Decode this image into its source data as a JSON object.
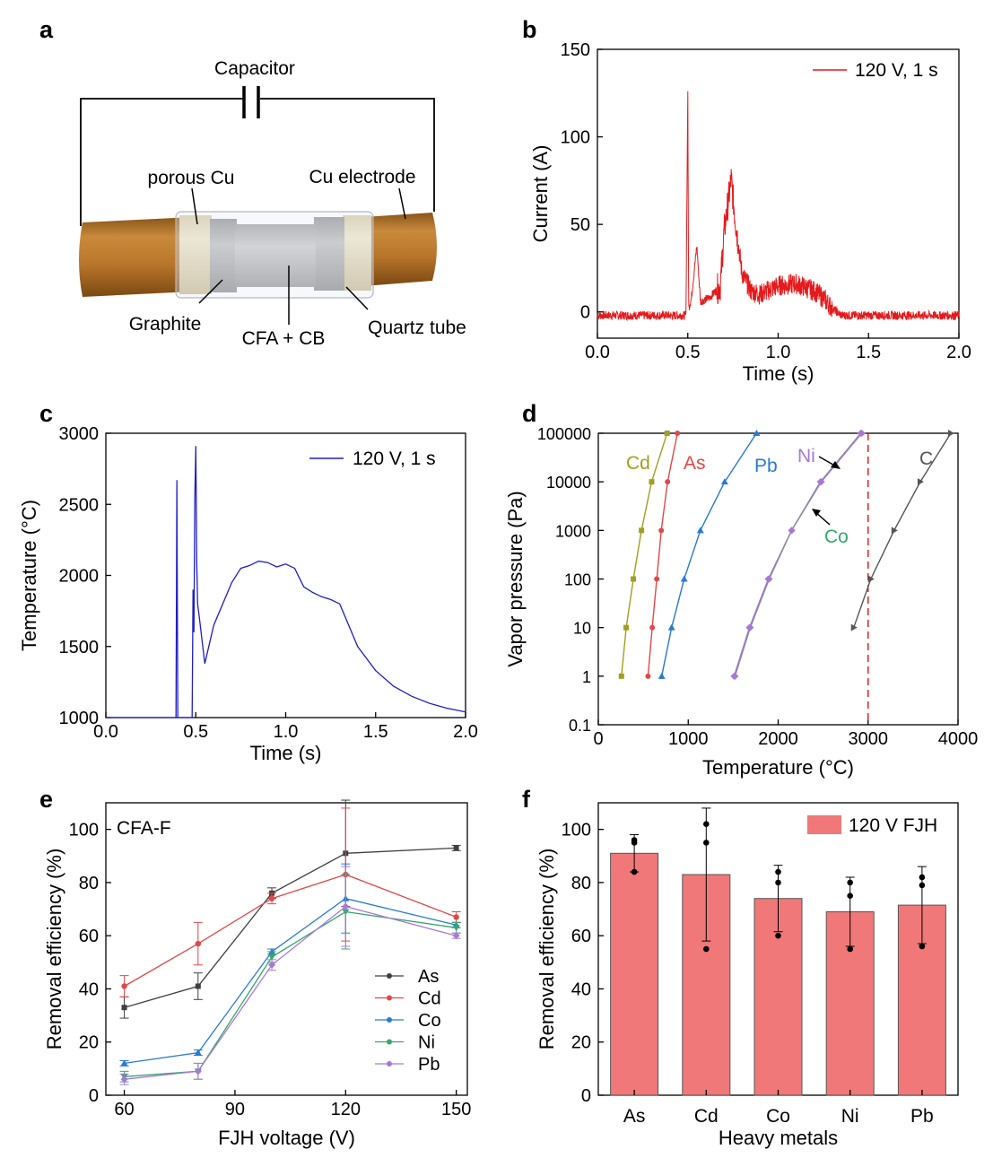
{
  "panel_labels": {
    "a": "a",
    "b": "b",
    "c": "c",
    "d": "d",
    "e": "e",
    "f": "f"
  },
  "schematic": {
    "capacitor": "Capacitor",
    "porous_cu": "porous Cu",
    "cu_electrode": "Cu electrode",
    "graphite": "Graphite",
    "cfa_cb": "CFA + CB",
    "quartz_tube": "Quartz tube"
  },
  "colors": {
    "current": "#e41a1c",
    "temperature": "#1f1fc9",
    "electrode": "#b8752a",
    "As": "#404040",
    "Cd": "#e04848",
    "Co": "#2a7ad0",
    "Ni": "#35a86a",
    "Pb": "#a978d6",
    "C": "#555555",
    "bar": "#f07878"
  },
  "chart_data": [
    {
      "id": "b",
      "type": "line",
      "title": "",
      "xlabel": "Time (s)",
      "ylabel": "Current (A)",
      "xlim": [
        0,
        2.0
      ],
      "ylim": [
        -15,
        150
      ],
      "xticks": [
        "0.0",
        "0.5",
        "1.0",
        "1.5",
        "2.0"
      ],
      "yticks": [
        "0",
        "50",
        "100",
        "150"
      ],
      "legend": "120 V, 1 s",
      "series": [
        {
          "name": "120 V, 1 s",
          "x": [
            0,
            0.49,
            0.5,
            0.505,
            0.52,
            0.55,
            0.57,
            0.62,
            0.68,
            0.7,
            0.72,
            0.74,
            0.76,
            0.8,
            0.85,
            0.9,
            1.0,
            1.1,
            1.2,
            1.25,
            1.3,
            1.35,
            1.5,
            2.0
          ],
          "y": [
            -2,
            -2,
            127,
            2,
            8,
            38,
            6,
            8,
            15,
            45,
            60,
            76,
            55,
            22,
            12,
            10,
            15,
            16,
            12,
            8,
            2,
            -2,
            -2,
            -2
          ]
        }
      ]
    },
    {
      "id": "c",
      "type": "line",
      "title": "",
      "xlabel": "Time (s)",
      "ylabel": "Temperature (°C)",
      "xlim": [
        0,
        2.0
      ],
      "ylim": [
        1000,
        3000
      ],
      "xticks": [
        "0.0",
        "0.5",
        "1.0",
        "1.5",
        "2.0"
      ],
      "yticks": [
        "1000",
        "1500",
        "2000",
        "2500",
        "3000"
      ],
      "legend": "120 V, 1 s",
      "series": [
        {
          "name": "120 V, 1 s",
          "x": [
            0,
            0.39,
            0.395,
            0.4,
            0.405,
            0.48,
            0.485,
            0.49,
            0.495,
            0.5,
            0.505,
            0.51,
            0.52,
            0.55,
            0.6,
            0.7,
            0.75,
            0.8,
            0.85,
            0.9,
            0.95,
            1.0,
            1.05,
            1.1,
            1.15,
            1.2,
            1.25,
            1.3,
            1.35,
            1.4,
            1.5,
            1.6,
            1.7,
            1.8,
            1.9,
            2.0
          ],
          "y": [
            1000,
            1000,
            2670,
            1000,
            1000,
            1000,
            1900,
            1600,
            2550,
            2910,
            2100,
            1800,
            1700,
            1380,
            1650,
            1950,
            2050,
            2070,
            2100,
            2090,
            2060,
            2080,
            2050,
            1920,
            1880,
            1850,
            1830,
            1800,
            1650,
            1500,
            1330,
            1220,
            1150,
            1100,
            1065,
            1040
          ]
        }
      ]
    },
    {
      "id": "d",
      "type": "line",
      "title": "",
      "xlabel": "Temperature (°C)",
      "ylabel": "Vapor pressure (Pa)",
      "xlim": [
        0,
        4000
      ],
      "ylim": [
        0.1,
        100000
      ],
      "yscale": "log",
      "xticks": [
        "0",
        "1000",
        "2000",
        "3000",
        "4000"
      ],
      "yticks": [
        "0.1",
        "1",
        "10",
        "100",
        "1000",
        "10000",
        "100000"
      ],
      "reference_line_x": 3000,
      "y": [
        1,
        10,
        100,
        1000,
        10000,
        100000
      ],
      "series": [
        {
          "name": "Cd",
          "x": [
            257,
            310,
            390,
            480,
            593,
            765
          ]
        },
        {
          "name": "As",
          "x": [
            553,
            600,
            650,
            700,
            770,
            880
          ]
        },
        {
          "name": "Pb",
          "x": [
            705,
            815,
            955,
            1135,
            1405,
            1760
          ]
        },
        {
          "name": "Ni",
          "x": [
            1510,
            1680,
            1890,
            2150,
            2480,
            2930
          ]
        },
        {
          "name": "Co",
          "x": [
            1520,
            1690,
            1900,
            2150,
            2470,
            2920
          ]
        },
        {
          "name": "C",
          "y": [
            10,
            100,
            1000,
            10000,
            100000
          ],
          "x": [
            2840,
            3030,
            3290,
            3580,
            3920
          ]
        }
      ]
    },
    {
      "id": "e",
      "type": "line",
      "title": "CFA-F",
      "xlabel": "FJH voltage (V)",
      "ylabel": "Removal efficiency (%)",
      "xlim": [
        55,
        153
      ],
      "ylim": [
        0,
        110
      ],
      "xticks": [
        "60",
        "90",
        "120",
        "150"
      ],
      "yticks": [
        "0",
        "20",
        "40",
        "60",
        "80",
        "100"
      ],
      "x": [
        60,
        80,
        100,
        120,
        150
      ],
      "series": [
        {
          "name": "As",
          "values": [
            33,
            41,
            76,
            91,
            93
          ],
          "errors": [
            4,
            5,
            2,
            20,
            1
          ]
        },
        {
          "name": "Cd",
          "values": [
            41,
            57,
            74,
            83,
            67
          ],
          "errors": [
            4,
            8,
            2,
            25,
            2
          ]
        },
        {
          "name": "Co",
          "values": [
            12,
            16,
            54,
            74,
            64
          ],
          "errors": [
            1,
            1,
            1,
            13,
            1
          ]
        },
        {
          "name": "Ni",
          "values": [
            7,
            9,
            52,
            69,
            63
          ],
          "errors": [
            2,
            3,
            2,
            14,
            2
          ]
        },
        {
          "name": "Pb",
          "values": [
            6,
            9,
            49,
            71,
            60
          ],
          "errors": [
            2,
            3,
            2,
            15,
            1
          ]
        }
      ]
    },
    {
      "id": "f",
      "type": "bar",
      "title": "",
      "xlabel": "Heavy metals",
      "ylabel": "Removal efficiency (%)",
      "ylim": [
        0,
        110
      ],
      "yticks": [
        "0",
        "20",
        "40",
        "60",
        "80",
        "100"
      ],
      "legend": "120 V FJH",
      "categories": [
        "As",
        "Cd",
        "Co",
        "Ni",
        "Pb"
      ],
      "values": [
        91,
        83,
        74,
        69,
        71.5
      ],
      "errors": [
        7,
        25,
        12.5,
        13,
        14.5
      ],
      "points": [
        [
          84,
          95,
          96
        ],
        [
          55,
          95,
          102
        ],
        [
          60,
          80,
          84
        ],
        [
          55,
          75,
          80
        ],
        [
          56,
          79,
          82
        ]
      ]
    }
  ]
}
